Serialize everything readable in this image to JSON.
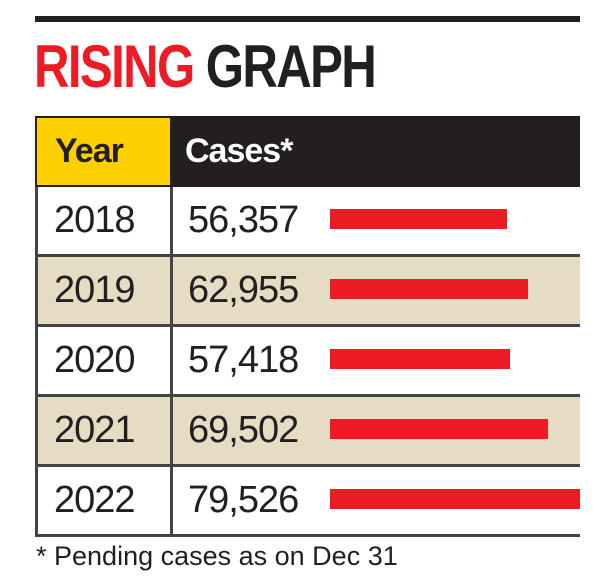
{
  "chart_data": {
    "type": "bar",
    "orientation": "horizontal",
    "title_part1": "RISING",
    "title_part2": "GRAPH",
    "column_headers": [
      "Year",
      "Cases*"
    ],
    "categories": [
      "2018",
      "2019",
      "2020",
      "2021",
      "2022"
    ],
    "values": [
      56357,
      62955,
      57418,
      69502,
      79526
    ],
    "value_labels": [
      "56,357",
      "62,955",
      "57,418",
      "69,502",
      "79,526"
    ],
    "footnote": "* Pending cases as on Dec 31",
    "colors": {
      "bar": "#ed1c24",
      "title_accent": "#ed1c24",
      "header_bg": "#231f20",
      "year_header_bg": "#fcd000",
      "alt_row_bg": "#e6dcc4"
    }
  }
}
